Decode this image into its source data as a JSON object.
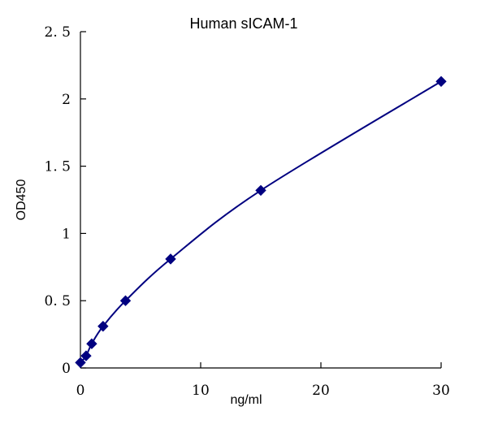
{
  "chart_data": {
    "type": "scatter",
    "title": "Human sICAM-1",
    "xlabel": "ng/ml",
    "ylabel": "OD450",
    "xlim": [
      0,
      30
    ],
    "ylim": [
      0,
      2.5
    ],
    "x_ticks": [
      0,
      10,
      20,
      30
    ],
    "y_ticks": [
      0,
      0.5,
      1,
      1.5,
      2,
      2.5
    ],
    "x_tick_labels": [
      "0",
      "10",
      "20",
      "30"
    ],
    "y_tick_labels": [
      "0",
      "0. 5",
      "1",
      "1. 5",
      "2",
      "2. 5"
    ],
    "grid": false,
    "legend": "none",
    "series": [
      {
        "marker": "diamond",
        "color": "#000080",
        "x": [
          0,
          0.47,
          0.94,
          1.88,
          3.75,
          7.5,
          15,
          30
        ],
        "y": [
          0.04,
          0.09,
          0.18,
          0.31,
          0.5,
          0.81,
          1.32,
          2.13
        ]
      }
    ],
    "fit_line": {
      "color": "#000080",
      "type": "smooth curve through points"
    }
  }
}
